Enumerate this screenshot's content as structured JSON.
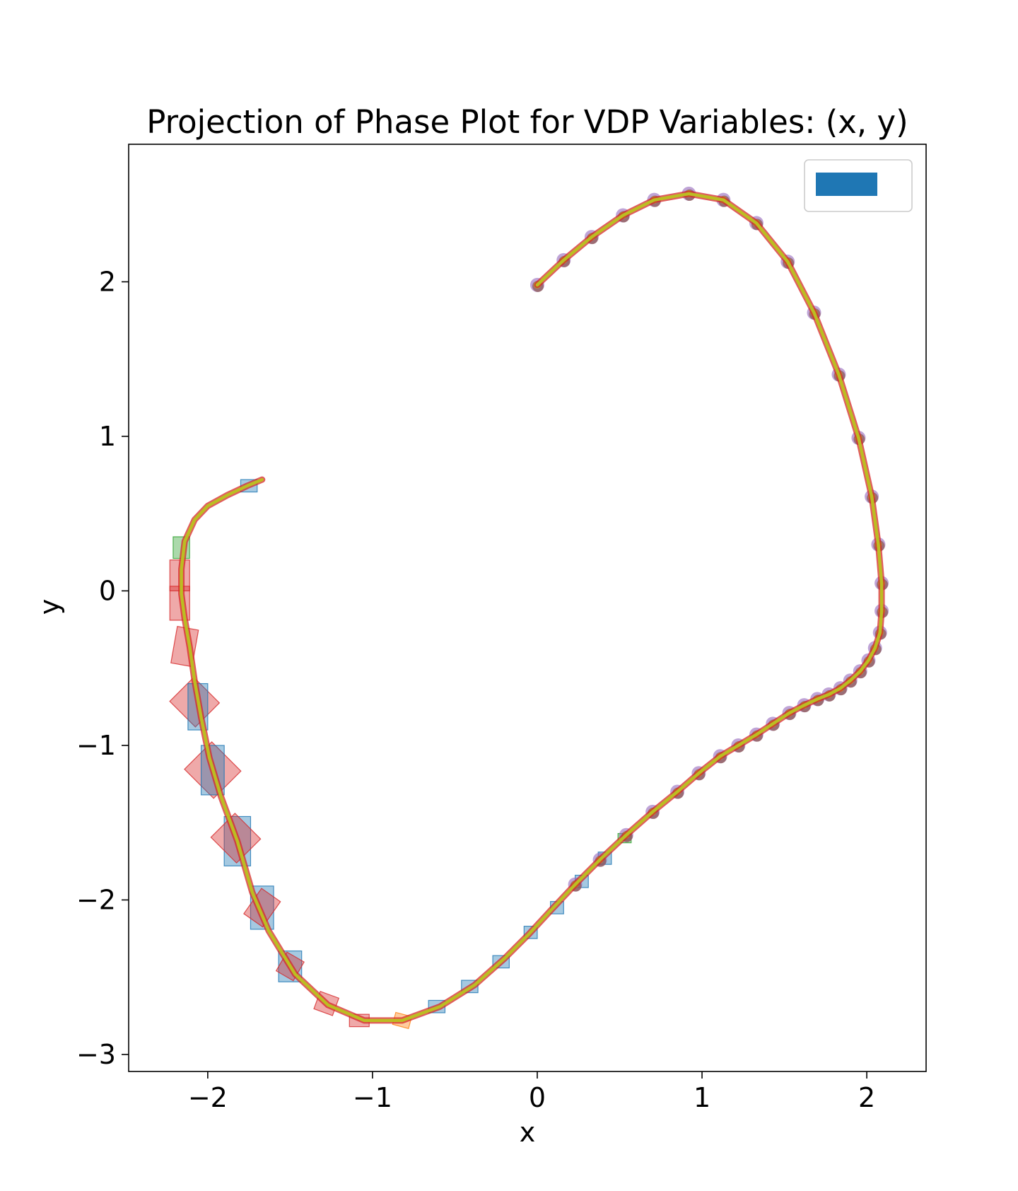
{
  "chart_data": {
    "type": "line",
    "title": "Projection of Phase Plot for VDP Variables: (x, y)",
    "xlabel": "x",
    "ylabel": "y",
    "xlim": [
      -2.48,
      2.36
    ],
    "ylim": [
      -3.11,
      2.89
    ],
    "x_ticks": [
      -2,
      -1,
      0,
      1,
      2
    ],
    "x_tick_labels": [
      "−2",
      "−1",
      "0",
      "1",
      "2"
    ],
    "y_ticks": [
      -3,
      -2,
      -1,
      0,
      1,
      2
    ],
    "y_tick_labels": [
      "−3",
      "−2",
      "−1",
      "0",
      "1",
      "2"
    ],
    "grid": false,
    "legend": {
      "placement": "top-right",
      "entries": [
        {
          "label": "",
          "color": "#1f77b4"
        }
      ]
    },
    "colors": {
      "trajectory_outer": "#d62728",
      "trajectory_inner": "#bcbd22",
      "box_blue": "#1f77b4",
      "box_red": "#d62728",
      "box_orange": "#ff7f0e",
      "box_green": "#2ca02c",
      "marker_purple": "#9467bd",
      "marker_brown": "#8c564b"
    },
    "series": [
      {
        "values_xy": [
          [
            0.0,
            1.98
          ],
          [
            0.16,
            2.14
          ],
          [
            0.33,
            2.29
          ],
          [
            0.52,
            2.43
          ],
          [
            0.71,
            2.53
          ],
          [
            0.92,
            2.57
          ],
          [
            1.13,
            2.53
          ],
          [
            1.33,
            2.38
          ],
          [
            1.52,
            2.13
          ],
          [
            1.68,
            1.8
          ],
          [
            1.83,
            1.4
          ],
          [
            1.95,
            0.99
          ],
          [
            2.03,
            0.61
          ],
          [
            2.07,
            0.3
          ],
          [
            2.09,
            0.05
          ],
          [
            2.09,
            -0.13
          ],
          [
            2.08,
            -0.27
          ],
          [
            2.05,
            -0.37
          ],
          [
            2.01,
            -0.45
          ],
          [
            1.96,
            -0.52
          ],
          [
            1.9,
            -0.58
          ],
          [
            1.84,
            -0.63
          ],
          [
            1.77,
            -0.67
          ],
          [
            1.7,
            -0.7
          ],
          [
            1.62,
            -0.74
          ],
          [
            1.53,
            -0.79
          ],
          [
            1.43,
            -0.86
          ],
          [
            1.33,
            -0.93
          ],
          [
            1.22,
            -1.0
          ],
          [
            1.11,
            -1.07
          ],
          [
            0.98,
            -1.18
          ],
          [
            0.85,
            -1.3
          ],
          [
            0.7,
            -1.43
          ],
          [
            0.54,
            -1.58
          ],
          [
            0.38,
            -1.74
          ],
          [
            0.23,
            -1.9
          ],
          [
            0.08,
            -2.07
          ],
          [
            -0.05,
            -2.22
          ],
          [
            -0.2,
            -2.38
          ],
          [
            -0.38,
            -2.55
          ],
          [
            -0.59,
            -2.69
          ],
          [
            -0.82,
            -2.78
          ],
          [
            -1.05,
            -2.78
          ],
          [
            -1.27,
            -2.68
          ],
          [
            -1.47,
            -2.48
          ],
          [
            -1.63,
            -2.2
          ],
          [
            -1.73,
            -1.95
          ],
          [
            -1.82,
            -1.62
          ],
          [
            -1.92,
            -1.33
          ],
          [
            -1.99,
            -1.08
          ],
          [
            -2.04,
            -0.82
          ],
          [
            -2.08,
            -0.58
          ],
          [
            -2.11,
            -0.36
          ],
          [
            -2.14,
            -0.18
          ],
          [
            -2.16,
            -0.02
          ],
          [
            -2.16,
            0.14
          ],
          [
            -2.14,
            0.32
          ],
          [
            -2.08,
            0.46
          ],
          [
            -2.0,
            0.55
          ],
          [
            -1.88,
            0.62
          ],
          [
            -1.76,
            0.68
          ],
          [
            -1.67,
            0.72
          ]
        ]
      }
    ],
    "boxes": [
      {
        "x": -2.17,
        "y": -0.08,
        "w": 0.12,
        "h": 0.22,
        "angle": 0,
        "color": "box_red"
      },
      {
        "x": -2.14,
        "y": -0.36,
        "w": 0.13,
        "h": 0.24,
        "angle": 10,
        "color": "box_red"
      },
      {
        "x": -2.08,
        "y": -0.72,
        "w": 0.22,
        "h": 0.22,
        "angle": 45,
        "color": "box_red"
      },
      {
        "x": -2.06,
        "y": -0.75,
        "w": 0.12,
        "h": 0.3,
        "angle": 0,
        "color": "box_blue"
      },
      {
        "x": -1.97,
        "y": -1.16,
        "w": 0.25,
        "h": 0.25,
        "angle": 45,
        "color": "box_red"
      },
      {
        "x": -1.97,
        "y": -1.16,
        "w": 0.14,
        "h": 0.32,
        "angle": 0,
        "color": "box_blue"
      },
      {
        "x": -1.82,
        "y": -1.62,
        "w": 0.16,
        "h": 0.32,
        "angle": 0,
        "color": "box_blue"
      },
      {
        "x": -1.83,
        "y": -1.6,
        "w": 0.22,
        "h": 0.22,
        "angle": 45,
        "color": "box_red"
      },
      {
        "x": -1.67,
        "y": -2.05,
        "w": 0.14,
        "h": 0.28,
        "angle": 0,
        "color": "box_blue"
      },
      {
        "x": -1.67,
        "y": -2.05,
        "w": 0.14,
        "h": 0.2,
        "angle": 35,
        "color": "box_red"
      },
      {
        "x": -1.5,
        "y": -2.43,
        "w": 0.14,
        "h": 0.2,
        "angle": 0,
        "color": "box_blue"
      },
      {
        "x": -1.5,
        "y": -2.43,
        "w": 0.12,
        "h": 0.14,
        "angle": 30,
        "color": "box_red"
      },
      {
        "x": -1.28,
        "y": -2.67,
        "w": 0.12,
        "h": 0.12,
        "angle": 20,
        "color": "box_red"
      },
      {
        "x": -1.08,
        "y": -2.78,
        "w": 0.12,
        "h": 0.08,
        "angle": 0,
        "color": "box_red"
      },
      {
        "x": -0.82,
        "y": -2.78,
        "w": 0.1,
        "h": 0.08,
        "angle": 15,
        "color": "box_orange"
      },
      {
        "x": -0.61,
        "y": -2.69,
        "w": 0.1,
        "h": 0.08,
        "angle": 0,
        "color": "box_blue"
      },
      {
        "x": -0.41,
        "y": -2.56,
        "w": 0.1,
        "h": 0.08,
        "angle": 0,
        "color": "box_blue"
      },
      {
        "x": -0.22,
        "y": -2.4,
        "w": 0.1,
        "h": 0.08,
        "angle": 0,
        "color": "box_blue"
      },
      {
        "x": -0.04,
        "y": -2.21,
        "w": 0.08,
        "h": 0.08,
        "angle": 0,
        "color": "box_blue"
      },
      {
        "x": 0.12,
        "y": -2.05,
        "w": 0.08,
        "h": 0.08,
        "angle": 0,
        "color": "box_blue"
      },
      {
        "x": 0.27,
        "y": -1.88,
        "w": 0.08,
        "h": 0.08,
        "angle": 0,
        "color": "box_blue"
      },
      {
        "x": 0.41,
        "y": -1.73,
        "w": 0.08,
        "h": 0.08,
        "angle": 0,
        "color": "box_blue"
      },
      {
        "x": 0.53,
        "y": -1.6,
        "w": 0.08,
        "h": 0.06,
        "angle": 0,
        "color": "box_green"
      },
      {
        "x": -2.17,
        "y": 0.1,
        "w": 0.12,
        "h": 0.2,
        "angle": 0,
        "color": "box_red"
      },
      {
        "x": -2.16,
        "y": 0.28,
        "w": 0.1,
        "h": 0.14,
        "angle": 0,
        "color": "box_green"
      },
      {
        "x": -1.75,
        "y": 0.68,
        "w": 0.1,
        "h": 0.08,
        "angle": 0,
        "color": "box_blue"
      }
    ],
    "markers": [
      [
        0.0,
        1.98
      ],
      [
        0.16,
        2.14
      ],
      [
        0.33,
        2.29
      ],
      [
        0.52,
        2.43
      ],
      [
        0.71,
        2.53
      ],
      [
        0.92,
        2.57
      ],
      [
        1.13,
        2.53
      ],
      [
        1.33,
        2.38
      ],
      [
        1.52,
        2.13
      ],
      [
        1.68,
        1.8
      ],
      [
        1.83,
        1.4
      ],
      [
        1.95,
        0.99
      ],
      [
        2.03,
        0.61
      ],
      [
        2.07,
        0.3
      ],
      [
        2.09,
        0.05
      ],
      [
        2.09,
        -0.13
      ],
      [
        2.08,
        -0.27
      ],
      [
        2.05,
        -0.37
      ],
      [
        2.01,
        -0.45
      ],
      [
        1.96,
        -0.52
      ],
      [
        1.9,
        -0.58
      ],
      [
        1.84,
        -0.63
      ],
      [
        1.77,
        -0.67
      ],
      [
        1.7,
        -0.7
      ],
      [
        1.62,
        -0.74
      ],
      [
        1.53,
        -0.79
      ],
      [
        1.43,
        -0.86
      ],
      [
        1.33,
        -0.93
      ],
      [
        1.22,
        -1.0
      ],
      [
        1.11,
        -1.07
      ],
      [
        0.98,
        -1.18
      ],
      [
        0.85,
        -1.3
      ],
      [
        0.7,
        -1.43
      ],
      [
        0.54,
        -1.58
      ],
      [
        0.38,
        -1.74
      ],
      [
        0.23,
        -1.9
      ]
    ]
  }
}
